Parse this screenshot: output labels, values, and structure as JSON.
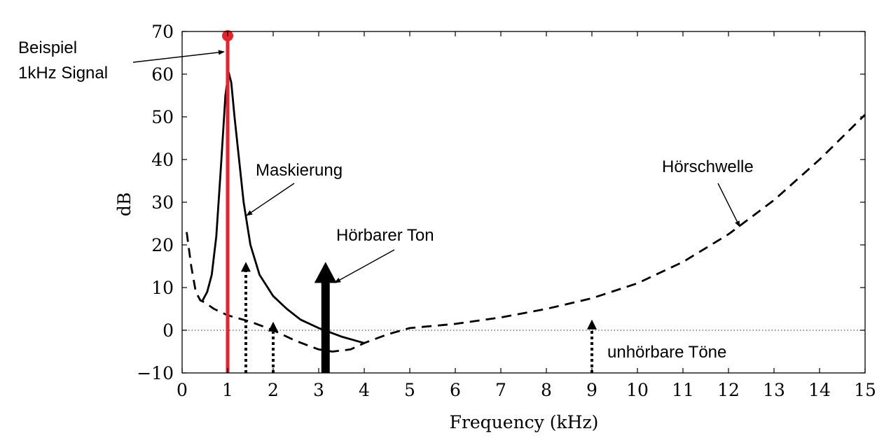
{
  "chart_data": {
    "type": "line",
    "xlabel": "Frequency (kHz)",
    "ylabel": "dB",
    "xlim": [
      0,
      15
    ],
    "ylim": [
      -10,
      70
    ],
    "x_ticks": [
      0,
      1,
      2,
      3,
      4,
      5,
      6,
      7,
      8,
      9,
      10,
      11,
      12,
      13,
      14,
      15
    ],
    "y_ticks": [
      -10,
      0,
      10,
      20,
      30,
      40,
      50,
      60,
      70
    ],
    "grid": false,
    "reference_line": {
      "y": 0,
      "style": "dotted",
      "color": "#555555"
    },
    "series": [
      {
        "name": "Hörschwelle",
        "style": "dashed",
        "color": "#000000",
        "points": [
          [
            0.1,
            23
          ],
          [
            0.2,
            15
          ],
          [
            0.3,
            9
          ],
          [
            0.4,
            7
          ],
          [
            0.5,
            6.5
          ],
          [
            0.7,
            5
          ],
          [
            1.0,
            3.5
          ],
          [
            1.5,
            2
          ],
          [
            2.0,
            0
          ],
          [
            2.5,
            -2.5
          ],
          [
            3.0,
            -4.5
          ],
          [
            3.3,
            -5
          ],
          [
            3.7,
            -4.5
          ],
          [
            4.0,
            -3
          ],
          [
            4.5,
            -1
          ],
          [
            5.0,
            0.5
          ],
          [
            6.0,
            1.5
          ],
          [
            7.0,
            3
          ],
          [
            8.0,
            5
          ],
          [
            9.0,
            7.5
          ],
          [
            10.0,
            11
          ],
          [
            11.0,
            16
          ],
          [
            12.0,
            22.5
          ],
          [
            13.0,
            30.5
          ],
          [
            14.0,
            40
          ],
          [
            15.0,
            50.5
          ]
        ]
      },
      {
        "name": "Maskierung",
        "style": "solid",
        "color": "#000000",
        "points": [
          [
            0.45,
            7
          ],
          [
            0.55,
            9
          ],
          [
            0.65,
            13
          ],
          [
            0.75,
            22
          ],
          [
            0.85,
            38
          ],
          [
            0.95,
            55
          ],
          [
            1.02,
            60.5
          ],
          [
            1.08,
            58
          ],
          [
            1.15,
            50
          ],
          [
            1.25,
            40
          ],
          [
            1.35,
            30
          ],
          [
            1.5,
            20
          ],
          [
            1.7,
            13
          ],
          [
            2.0,
            8
          ],
          [
            2.3,
            5
          ],
          [
            2.6,
            2.5
          ],
          [
            3.0,
            0.5
          ],
          [
            3.5,
            -1.5
          ],
          [
            4.0,
            -3
          ]
        ]
      }
    ],
    "signal_line": {
      "x": 1.0,
      "y_top": 69,
      "color": "#e8222a"
    },
    "arrows": [
      {
        "x": 1.4,
        "y_from": -10,
        "y_to": 16,
        "style": "dotted"
      },
      {
        "x": 2.0,
        "y_from": -10,
        "y_to": 2,
        "style": "dotted"
      },
      {
        "x": 3.15,
        "y_from": -10,
        "y_to": 16,
        "style": "solid-bold"
      },
      {
        "x": 9.0,
        "y_from": -10,
        "y_to": 2.5,
        "style": "dotted"
      }
    ],
    "annotations": [
      {
        "id": "beispiel",
        "lines": [
          "Beispiel",
          "1kHz Signal"
        ]
      },
      {
        "id": "maskierung",
        "text": "Maskierung"
      },
      {
        "id": "hoerschwelle",
        "text": "Hörschwelle"
      },
      {
        "id": "hoerbarer",
        "text": "Hörbarer Ton"
      },
      {
        "id": "unhoerbar",
        "text": "unhörbare Töne"
      }
    ]
  }
}
